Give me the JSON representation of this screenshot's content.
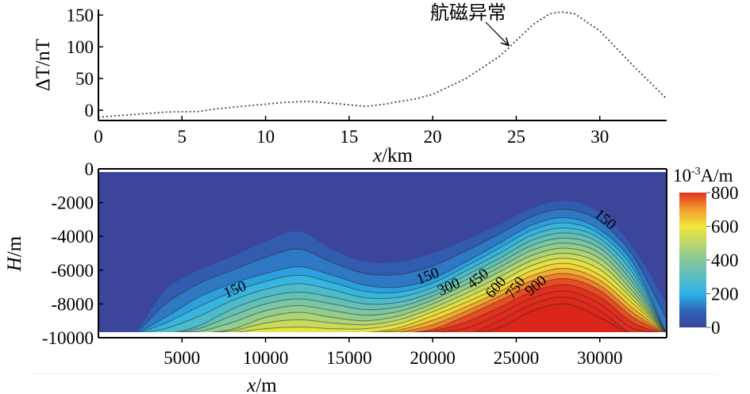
{
  "chart_data": [
    {
      "type": "line",
      "title": "",
      "xlabel": "x/km",
      "ylabel": "ΔT/nT",
      "xlim": [
        0,
        34
      ],
      "ylim": [
        -16,
        160
      ],
      "xticks": [
        "0",
        "5",
        "10",
        "15",
        "20",
        "25",
        "30"
      ],
      "yticks": [
        "0",
        "50",
        "100",
        "150"
      ],
      "annotation": "航磁异常",
      "annotation_target": {
        "x": 24.5,
        "y": 97
      },
      "series": [
        {
          "name": "ΔT",
          "style": "dotted",
          "x": [
            0,
            2,
            4,
            6,
            7,
            9,
            11,
            12.5,
            14,
            16,
            17,
            19,
            20,
            22,
            24,
            24.5,
            26,
            27,
            27.7,
            28.5,
            30,
            32,
            34
          ],
          "y": [
            -11,
            -7,
            -3,
            -2,
            2,
            7,
            12,
            14,
            11,
            6,
            9,
            18,
            25,
            50,
            85,
            97,
            135,
            152,
            155,
            152,
            125,
            70,
            18
          ]
        }
      ]
    },
    {
      "type": "heatmap",
      "subtype": "filled-contour",
      "xlabel": "x/m",
      "ylabel": "H/m",
      "xlim": [
        0,
        34000
      ],
      "ylim": [
        -10000,
        0
      ],
      "xticks": [
        "5000",
        "10000",
        "15000",
        "20000",
        "25000",
        "30000"
      ],
      "yticks": [
        "0",
        "-2000",
        "-4000",
        "-6000",
        "-8000",
        "-10000"
      ],
      "colorbar": {
        "unit": "10-3A/m",
        "unit_base": "10",
        "unit_exp": "-3",
        "unit_rest": "A/m",
        "range": [
          0,
          800
        ],
        "ticks": [
          "800",
          "600",
          "400",
          "200",
          "0"
        ]
      },
      "contour_labels": [
        "150",
        "150",
        "300",
        "450",
        "600",
        "750",
        "900",
        "150"
      ],
      "x_samples": [
        0,
        2000,
        4000,
        6000,
        8000,
        10000,
        12000,
        14000,
        16000,
        18000,
        20000,
        22000,
        24000,
        26000,
        28000,
        30000,
        32000,
        34000
      ],
      "level_top_depths": [
        {
          "level": 50,
          "depth": [
            -9800,
            -9800,
            -7200,
            -6000,
            -5200,
            -4300,
            -3700,
            -4800,
            -5500,
            -5500,
            -5000,
            -4200,
            -3300,
            -2300,
            -1900,
            -2600,
            -4700,
            -8000
          ]
        },
        {
          "level": 150,
          "depth": [
            -9800,
            -9800,
            -8800,
            -7600,
            -6800,
            -6200,
            -5800,
            -6300,
            -6900,
            -7000,
            -6500,
            -5500,
            -4400,
            -3300,
            -2900,
            -3600,
            -5600,
            -9800
          ]
        },
        {
          "level": 300,
          "depth": [
            -9800,
            -9800,
            -9800,
            -9300,
            -8300,
            -7600,
            -7300,
            -7600,
            -8000,
            -7900,
            -7300,
            -6300,
            -5300,
            -4200,
            -3800,
            -4400,
            -6500,
            -9800
          ]
        },
        {
          "level": 450,
          "depth": [
            -9800,
            -9800,
            -9800,
            -9800,
            -9500,
            -8800,
            -8500,
            -8800,
            -9000,
            -8700,
            -8000,
            -7100,
            -6100,
            -5100,
            -4700,
            -5300,
            -7300,
            -9800
          ]
        },
        {
          "level": 600,
          "depth": [
            -9800,
            -9800,
            -9800,
            -9800,
            -9800,
            -9800,
            -9800,
            -9800,
            -9700,
            -9400,
            -8700,
            -7900,
            -7000,
            -6000,
            -5600,
            -6300,
            -8000,
            -9800
          ]
        },
        {
          "level": 750,
          "depth": [
            -9800,
            -9800,
            -9800,
            -9800,
            -9800,
            -9800,
            -9800,
            -9800,
            -9800,
            -9800,
            -9500,
            -8700,
            -7800,
            -6900,
            -6500,
            -7200,
            -8800,
            -9800
          ]
        },
        {
          "level": 900,
          "depth": [
            -9800,
            -9800,
            -9800,
            -9800,
            -9800,
            -9800,
            -9800,
            -9800,
            -9800,
            -9800,
            -9800,
            -9800,
            -9000,
            -8000,
            -7600,
            -8400,
            -9800,
            -9800
          ]
        }
      ]
    }
  ]
}
